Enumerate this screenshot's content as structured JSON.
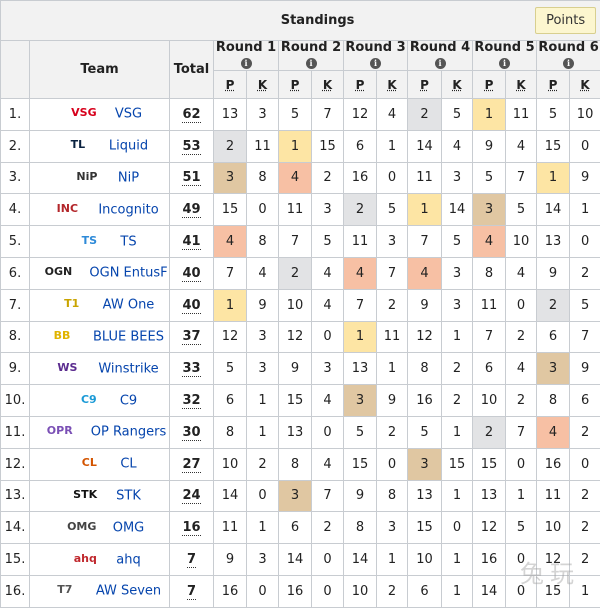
{
  "title": "Standings",
  "points_button": "Points",
  "headers": {
    "team": "Team",
    "total": "Total",
    "p": "P",
    "k": "K",
    "info_glyph": "i"
  },
  "rounds": [
    "Round 1",
    "Round 2",
    "Round 3",
    "Round 4",
    "Round 5",
    "Round 6"
  ],
  "highlight_colors": {
    "tan": "#e0c7a2",
    "orange": "#f7c0a4",
    "yellow": "#fde5a4",
    "grey": "#e2e3e5"
  },
  "rows": [
    {
      "rank": "1.",
      "team": "VSG",
      "logo_text": "VSG",
      "logo_color": "#d7001b",
      "total": "62",
      "cells": [
        "13",
        "3",
        "5",
        "7",
        "12",
        "4",
        "2",
        "5",
        "1",
        "11",
        "5",
        "10"
      ],
      "hl": [
        "",
        "",
        "",
        "",
        "",
        "",
        "grey",
        "",
        "yellow",
        "",
        "",
        ""
      ]
    },
    {
      "rank": "2.",
      "team": "Liquid",
      "logo_text": "TL",
      "logo_color": "#0a2240",
      "total": "53",
      "cells": [
        "2",
        "11",
        "1",
        "15",
        "6",
        "1",
        "14",
        "4",
        "9",
        "4",
        "15",
        "0"
      ],
      "hl": [
        "grey",
        "",
        "yellow",
        "",
        "",
        "",
        "",
        "",
        "",
        "",
        "",
        ""
      ]
    },
    {
      "rank": "3.",
      "team": "NiP",
      "logo_text": "NiP",
      "logo_color": "#333333",
      "total": "51",
      "cells": [
        "3",
        "8",
        "4",
        "2",
        "16",
        "0",
        "11",
        "3",
        "5",
        "7",
        "1",
        "9"
      ],
      "hl": [
        "tan",
        "",
        "orange",
        "",
        "",
        "",
        "",
        "",
        "",
        "",
        "yellow",
        ""
      ]
    },
    {
      "rank": "4.",
      "team": "Incognito",
      "logo_text": "INC",
      "logo_color": "#b3262a",
      "total": "49",
      "cells": [
        "15",
        "0",
        "11",
        "3",
        "2",
        "5",
        "1",
        "14",
        "3",
        "5",
        "14",
        "1"
      ],
      "hl": [
        "",
        "",
        "",
        "",
        "grey",
        "",
        "yellow",
        "",
        "tan",
        "",
        "",
        ""
      ]
    },
    {
      "rank": "5.",
      "team": "TS",
      "logo_text": "TS",
      "logo_color": "#2e8ad8",
      "total": "41",
      "cells": [
        "4",
        "8",
        "7",
        "5",
        "11",
        "3",
        "7",
        "5",
        "4",
        "10",
        "13",
        "0"
      ],
      "hl": [
        "orange",
        "",
        "",
        "",
        "",
        "",
        "",
        "",
        "orange",
        "",
        "",
        ""
      ]
    },
    {
      "rank": "6.",
      "team": "OGN EntusF",
      "logo_text": "OGN",
      "logo_color": "#222222",
      "total": "40",
      "cells": [
        "7",
        "4",
        "2",
        "4",
        "4",
        "7",
        "4",
        "3",
        "8",
        "4",
        "9",
        "2"
      ],
      "hl": [
        "",
        "",
        "grey",
        "",
        "orange",
        "",
        "orange",
        "",
        "",
        "",
        "",
        ""
      ]
    },
    {
      "rank": "7.",
      "team": "AW One",
      "logo_text": "T1",
      "logo_color": "#c9a400",
      "total": "40",
      "cells": [
        "1",
        "9",
        "10",
        "4",
        "7",
        "2",
        "9",
        "3",
        "11",
        "0",
        "2",
        "5"
      ],
      "hl": [
        "yellow",
        "",
        "",
        "",
        "",
        "",
        "",
        "",
        "",
        "",
        "grey",
        ""
      ]
    },
    {
      "rank": "8.",
      "team": "BLUE BEES",
      "logo_text": "BB",
      "logo_color": "#e0b400",
      "total": "37",
      "cells": [
        "12",
        "3",
        "12",
        "0",
        "1",
        "11",
        "12",
        "1",
        "7",
        "2",
        "6",
        "7"
      ],
      "hl": [
        "",
        "",
        "",
        "",
        "yellow",
        "",
        "",
        "",
        "",
        "",
        "",
        ""
      ]
    },
    {
      "rank": "9.",
      "team": "Winstrike",
      "logo_text": "WS",
      "logo_color": "#5b2c8f",
      "total": "33",
      "cells": [
        "5",
        "3",
        "9",
        "3",
        "13",
        "1",
        "8",
        "2",
        "6",
        "4",
        "3",
        "9"
      ],
      "hl": [
        "",
        "",
        "",
        "",
        "",
        "",
        "",
        "",
        "",
        "",
        "tan",
        ""
      ]
    },
    {
      "rank": "10.",
      "team": "C9",
      "logo_text": "C9",
      "logo_color": "#1b9ad6",
      "total": "32",
      "cells": [
        "6",
        "1",
        "15",
        "4",
        "3",
        "9",
        "16",
        "2",
        "10",
        "2",
        "8",
        "6"
      ],
      "hl": [
        "",
        "",
        "",
        "",
        "tan",
        "",
        "",
        "",
        "",
        "",
        "",
        ""
      ]
    },
    {
      "rank": "11.",
      "team": "OP Rangers",
      "logo_text": "OPR",
      "logo_color": "#7a4fb5",
      "total": "30",
      "cells": [
        "8",
        "1",
        "13",
        "0",
        "5",
        "2",
        "5",
        "1",
        "2",
        "7",
        "4",
        "2"
      ],
      "hl": [
        "",
        "",
        "",
        "",
        "",
        "",
        "",
        "",
        "grey",
        "",
        "orange",
        ""
      ]
    },
    {
      "rank": "12.",
      "team": "CL",
      "logo_text": "CL",
      "logo_color": "#d35400",
      "total": "27",
      "cells": [
        "10",
        "2",
        "8",
        "4",
        "15",
        "0",
        "3",
        "15",
        "15",
        "0",
        "16",
        "0"
      ],
      "hl": [
        "",
        "",
        "",
        "",
        "",
        "",
        "tan",
        "",
        "",
        "",
        "",
        ""
      ]
    },
    {
      "rank": "13.",
      "team": "STK",
      "logo_text": "STK",
      "logo_color": "#111111",
      "total": "24",
      "cells": [
        "14",
        "0",
        "3",
        "7",
        "9",
        "8",
        "13",
        "1",
        "13",
        "1",
        "11",
        "2"
      ],
      "hl": [
        "",
        "",
        "tan",
        "",
        "",
        "",
        "",
        "",
        "",
        "",
        "",
        ""
      ]
    },
    {
      "rank": "14.",
      "team": "OMG",
      "logo_text": "OMG",
      "logo_color": "#444444",
      "total": "16",
      "cells": [
        "11",
        "1",
        "6",
        "2",
        "8",
        "3",
        "15",
        "0",
        "12",
        "5",
        "10",
        "2"
      ],
      "hl": [
        "",
        "",
        "",
        "",
        "",
        "",
        "",
        "",
        "",
        "",
        "",
        ""
      ]
    },
    {
      "rank": "15.",
      "team": "ahq",
      "logo_text": "ahq",
      "logo_color": "#c0282d",
      "total": "7",
      "cells": [
        "9",
        "3",
        "14",
        "0",
        "14",
        "1",
        "10",
        "1",
        "16",
        "0",
        "12",
        "2"
      ],
      "hl": [
        "",
        "",
        "",
        "",
        "",
        "",
        "",
        "",
        "",
        "",
        "",
        ""
      ]
    },
    {
      "rank": "16.",
      "team": "AW Seven",
      "logo_text": "T7",
      "logo_color": "#555555",
      "total": "7",
      "cells": [
        "16",
        "0",
        "16",
        "0",
        "10",
        "2",
        "6",
        "1",
        "14",
        "0",
        "15",
        "1"
      ],
      "hl": [
        "",
        "",
        "",
        "",
        "",
        "",
        "",
        "",
        "",
        "",
        "",
        ""
      ]
    }
  ]
}
